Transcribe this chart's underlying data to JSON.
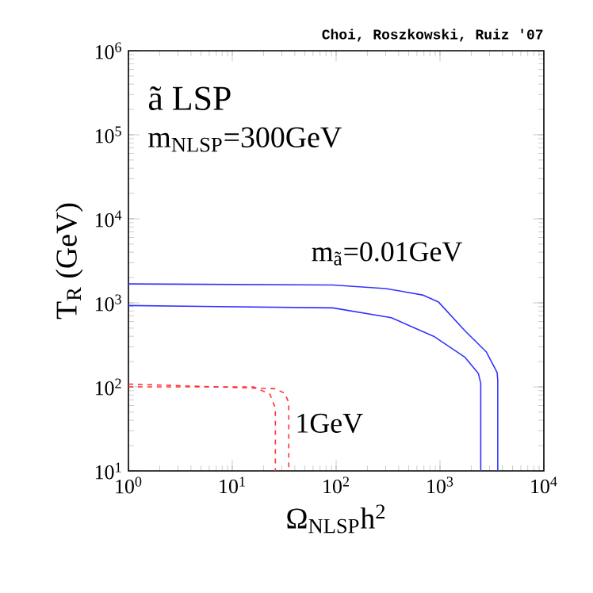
{
  "chart_data": {
    "type": "line",
    "xlabel": "Ω$_{NLSP}$h$^{2}$",
    "ylabel": "T$_{R}$ (GeV)",
    "log": "xy",
    "grid": false,
    "marker": "none",
    "xlim": [
      1,
      10000
    ],
    "ylim": [
      10,
      1000000
    ],
    "xticks": [
      {
        "value": 1,
        "label": "10$^{0}$"
      },
      {
        "value": 10,
        "label": "10$^{1}$"
      },
      {
        "value": 100,
        "label": "10$^{2}$"
      },
      {
        "value": 1000,
        "label": "10$^{3}$"
      },
      {
        "value": 10000,
        "label": "10$^{4}$"
      }
    ],
    "yticks": [
      {
        "value": 10,
        "label": "10$^{1}$"
      },
      {
        "value": 100,
        "label": "10$^{2}$"
      },
      {
        "value": 1000,
        "label": "10$^{3}$"
      },
      {
        "value": 10000,
        "label": "10$^{4}$"
      },
      {
        "value": 100000,
        "label": "10$^{5}$"
      },
      {
        "value": 1000000,
        "label": "10$^{6}$"
      }
    ],
    "annotations": [
      "Choi, Roszkowski, Ruiz '07",
      "ã  LSP",
      "m$_{NLSP}$=300GeV",
      "m$_{ã}$=0.01GeV",
      "1GeV"
    ],
    "series": [
      {
        "color": "#3333ff",
        "line_style": "solid",
        "x": [
          1,
          93,
          300,
          680,
          970,
          1740,
          2800,
          3550,
          3600,
          3600
        ],
        "values": [
          1680,
          1630,
          1480,
          1240,
          1020,
          465,
          260,
          148,
          120,
          10
        ]
      },
      {
        "color": "#3333ff",
        "line_style": "solid",
        "x": [
          1,
          93,
          340,
          870,
          1740,
          2340,
          2470,
          2470
        ],
        "values": [
          930,
          870,
          665,
          400,
          225,
          145,
          110,
          10
        ]
      },
      {
        "color": "#ff3333",
        "line_style": "dashed",
        "x": [
          1,
          26,
          32,
          35,
          35
        ],
        "values": [
          108,
          95,
          84,
          65,
          10
        ]
      },
      {
        "color": "#ff3333",
        "line_style": "dashed",
        "x": [
          1,
          16,
          23,
          26,
          26
        ],
        "values": [
          100,
          100,
          82,
          56,
          10
        ]
      }
    ]
  }
}
